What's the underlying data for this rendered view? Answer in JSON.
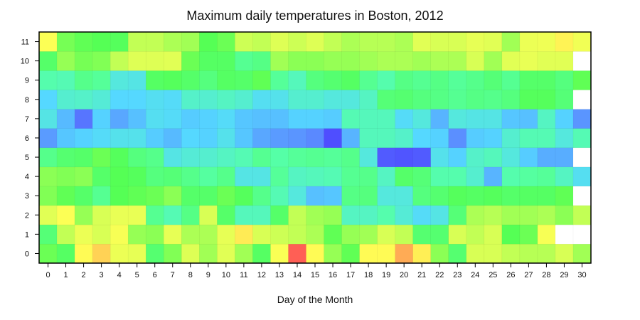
{
  "chart_data": {
    "type": "heatmap",
    "title": "Maximum daily temperatures in Boston, 2012",
    "xlabel": "Day of the Month",
    "ylabel": "",
    "x": [
      0,
      1,
      2,
      3,
      4,
      5,
      6,
      7,
      8,
      9,
      10,
      11,
      12,
      13,
      14,
      15,
      16,
      17,
      18,
      19,
      20,
      21,
      22,
      23,
      24,
      25,
      26,
      27,
      28,
      29,
      30
    ],
    "y": [
      0,
      1,
      2,
      3,
      4,
      5,
      6,
      7,
      8,
      9,
      10,
      11
    ],
    "colormap": [
      "#4b3bff",
      "#5b8cff",
      "#55d8ff",
      "#55ffaa",
      "#55ff55",
      "#ddff55",
      "#ffff55",
      "#ffcc55",
      "#ff5555"
    ],
    "vmin": 0,
    "vmax": 1,
    "missing_color": "#ffffff",
    "grid": false,
    "values": [
      [
        0.52,
        0.48,
        0.76,
        0.86,
        0.68,
        0.66,
        0.46,
        0.54,
        0.63,
        0.57,
        0.64,
        0.57,
        0.48,
        0.73,
        0.99,
        0.76,
        0.56,
        0.51,
        0.76,
        0.76,
        0.91,
        0.79,
        0.55,
        0.46,
        0.62,
        0.62,
        0.6,
        0.59,
        0.59,
        0.62,
        0.57
      ],
      [
        0.45,
        0.6,
        0.68,
        0.62,
        0.72,
        0.56,
        0.55,
        0.66,
        0.58,
        0.58,
        0.66,
        0.8,
        0.62,
        0.61,
        0.6,
        0.58,
        0.51,
        0.56,
        0.57,
        0.62,
        0.6,
        0.46,
        0.46,
        0.62,
        0.6,
        0.62,
        0.5,
        0.52,
        0.72,
        null,
        null
      ],
      [
        0.64,
        0.74,
        0.56,
        0.62,
        0.67,
        0.67,
        0.41,
        0.36,
        0.43,
        0.62,
        0.47,
        0.35,
        0.35,
        0.47,
        0.6,
        0.57,
        0.56,
        0.34,
        0.34,
        0.37,
        0.31,
        0.26,
        0.29,
        0.45,
        0.58,
        0.59,
        0.57,
        0.57,
        0.58,
        0.55,
        0.6
      ],
      [
        0.54,
        0.51,
        0.47,
        0.41,
        0.5,
        0.51,
        0.52,
        0.55,
        0.47,
        0.47,
        0.52,
        0.49,
        0.42,
        0.36,
        0.3,
        0.21,
        0.22,
        0.43,
        0.44,
        0.3,
        0.3,
        0.44,
        0.46,
        0.49,
        0.48,
        0.49,
        0.47,
        0.48,
        0.48,
        0.51,
        null
      ],
      [
        0.55,
        0.54,
        0.55,
        0.47,
        0.5,
        0.49,
        0.44,
        0.45,
        0.42,
        0.39,
        0.42,
        0.29,
        0.29,
        0.4,
        0.34,
        0.35,
        0.36,
        0.41,
        0.42,
        0.34,
        0.47,
        0.45,
        0.37,
        0.37,
        0.32,
        0.19,
        0.37,
        0.39,
        0.4,
        0.34,
        0.27
      ],
      [
        0.42,
        0.46,
        0.47,
        0.52,
        0.49,
        0.44,
        0.42,
        0.29,
        0.31,
        0.32,
        0.34,
        0.36,
        0.41,
        0.38,
        0.4,
        0.41,
        0.4,
        0.42,
        0.3,
        0.05,
        0.04,
        0.05,
        0.28,
        0.24,
        0.33,
        0.35,
        0.3,
        0.23,
        0.18,
        0.18,
        null
      ],
      [
        0.15,
        0.22,
        0.24,
        0.26,
        0.28,
        0.28,
        0.23,
        0.2,
        0.25,
        0.24,
        0.28,
        0.22,
        0.17,
        0.15,
        0.14,
        0.12,
        0.03,
        0.19,
        0.35,
        0.35,
        0.33,
        0.25,
        0.24,
        0.13,
        0.23,
        0.24,
        0.32,
        0.36,
        0.36,
        0.3,
        0.36
      ],
      [
        0.29,
        0.2,
        0.09,
        0.24,
        0.17,
        0.21,
        0.27,
        0.26,
        0.23,
        0.24,
        0.26,
        0.22,
        0.21,
        0.21,
        0.24,
        0.24,
        0.23,
        0.36,
        0.35,
        0.35,
        0.26,
        0.3,
        0.19,
        0.3,
        0.29,
        0.29,
        0.22,
        0.21,
        0.34,
        0.24,
        0.14
      ],
      [
        0.25,
        0.32,
        0.33,
        0.31,
        0.25,
        0.25,
        0.27,
        0.26,
        0.33,
        0.32,
        0.34,
        0.32,
        0.27,
        0.28,
        0.32,
        0.32,
        0.3,
        0.3,
        0.34,
        0.45,
        0.46,
        0.44,
        0.43,
        0.41,
        0.43,
        0.42,
        0.44,
        0.49,
        0.49,
        0.45,
        null
      ],
      [
        0.37,
        0.36,
        0.42,
        0.4,
        0.3,
        0.29,
        0.48,
        0.49,
        0.47,
        0.44,
        0.48,
        0.47,
        0.51,
        0.4,
        0.35,
        0.44,
        0.46,
        0.48,
        0.41,
        0.37,
        0.43,
        0.41,
        0.43,
        0.4,
        0.42,
        0.45,
        0.41,
        0.47,
        0.47,
        0.44,
        0.51
      ],
      [
        0.47,
        0.56,
        0.53,
        0.54,
        0.6,
        0.63,
        0.63,
        0.64,
        0.52,
        0.48,
        0.48,
        0.41,
        0.43,
        0.57,
        0.55,
        0.55,
        0.56,
        0.56,
        0.57,
        0.58,
        0.58,
        0.57,
        0.58,
        0.58,
        0.62,
        0.57,
        0.64,
        0.67,
        0.64,
        0.64,
        null
      ],
      [
        0.74,
        0.53,
        0.51,
        0.5,
        0.49,
        0.6,
        0.6,
        0.58,
        0.57,
        0.5,
        0.52,
        0.61,
        0.6,
        0.63,
        0.61,
        0.63,
        0.6,
        0.58,
        0.59,
        0.59,
        0.58,
        0.64,
        0.62,
        0.62,
        0.66,
        0.64,
        0.57,
        0.68,
        0.69,
        0.78,
        0.7
      ]
    ]
  }
}
